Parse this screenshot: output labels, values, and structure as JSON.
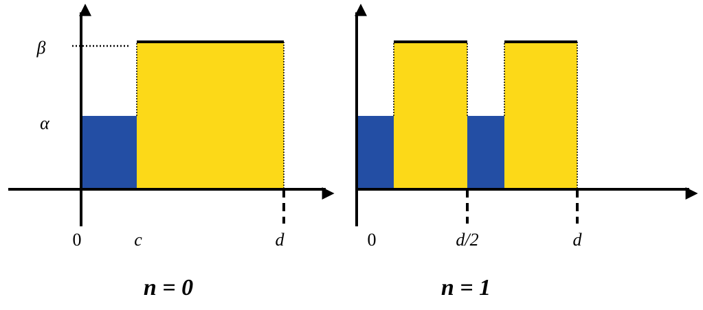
{
  "panels": [
    {
      "y_labels": [
        "β",
        "α"
      ],
      "x_labels": [
        "0",
        "c",
        "d"
      ],
      "caption": "n = 0"
    },
    {
      "x_labels": [
        "0",
        "d/2",
        "d"
      ],
      "caption": "n = 1"
    }
  ]
}
